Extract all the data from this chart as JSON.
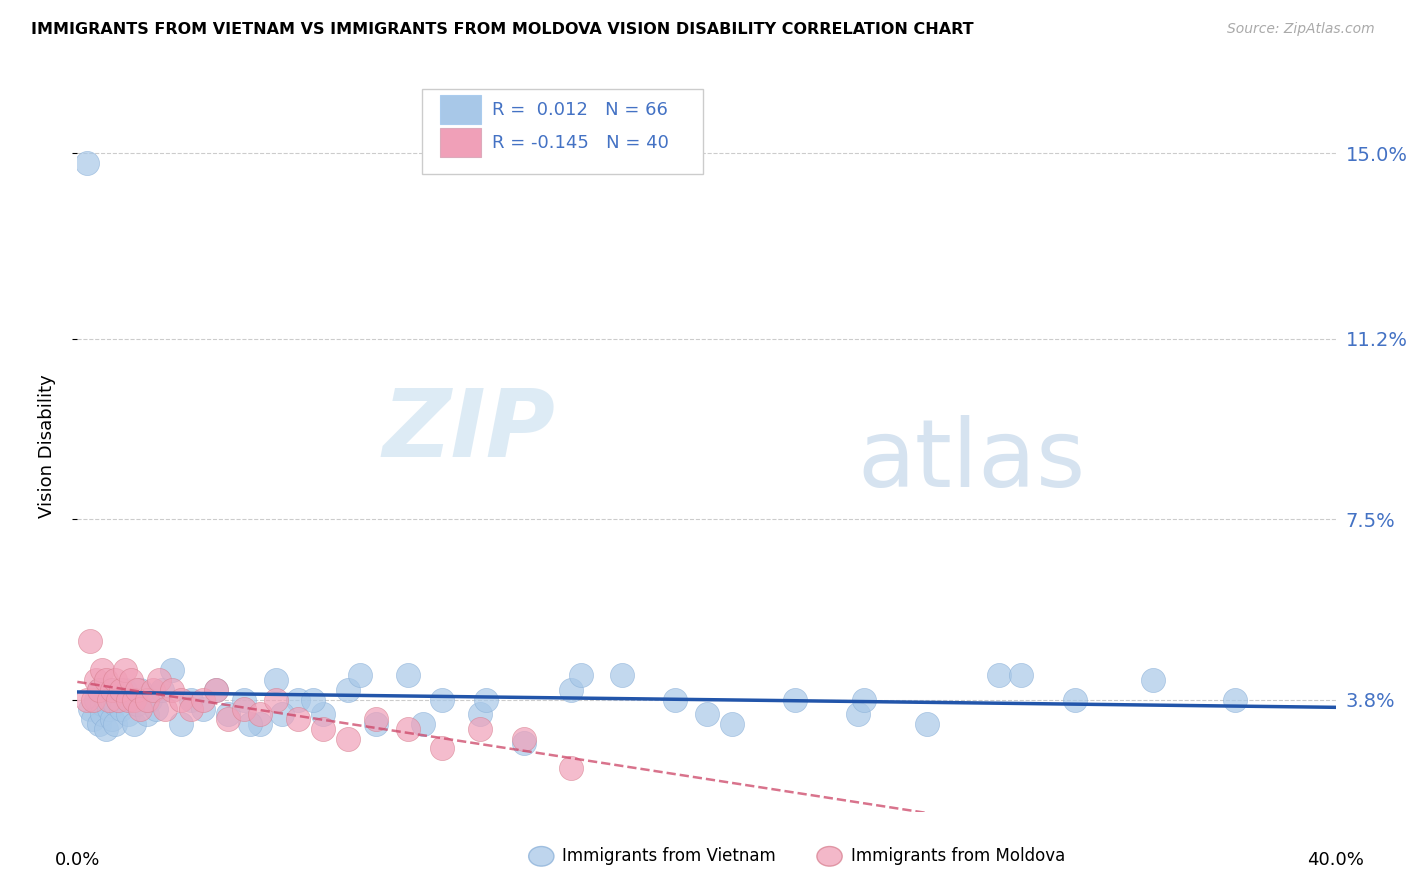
{
  "title": "IMMIGRANTS FROM VIETNAM VS IMMIGRANTS FROM MOLDOVA VISION DISABILITY CORRELATION CHART",
  "source": "Source: ZipAtlas.com",
  "ylabel": "Vision Disability",
  "yticks": [
    0.038,
    0.075,
    0.112,
    0.15
  ],
  "ytick_labels": [
    "3.8%",
    "7.5%",
    "11.2%",
    "15.0%"
  ],
  "xlim": [
    0.0,
    0.4
  ],
  "ylim": [
    0.015,
    0.165
  ],
  "vietnam_color": "#A8C8E8",
  "moldova_color": "#F0A0B8",
  "vietnam_R": "0.012",
  "vietnam_N": "66",
  "moldova_R": "-0.145",
  "moldova_N": "40",
  "trend_vietnam_color": "#2255AA",
  "trend_moldova_color": "#CC4466",
  "watermark_zip": "ZIP",
  "watermark_atlas": "atlas",
  "vietnam_x": [
    0.003,
    0.004,
    0.005,
    0.006,
    0.007,
    0.007,
    0.008,
    0.008,
    0.009,
    0.009,
    0.01,
    0.01,
    0.011,
    0.011,
    0.012,
    0.012,
    0.013,
    0.014,
    0.015,
    0.016,
    0.017,
    0.018,
    0.019,
    0.02,
    0.022,
    0.023,
    0.025,
    0.027,
    0.03,
    0.033,
    0.036,
    0.04,
    0.044,
    0.048,
    0.053,
    0.058,
    0.063,
    0.07,
    0.078,
    0.086,
    0.095,
    0.105,
    0.116,
    0.128,
    0.142,
    0.157,
    0.173,
    0.19,
    0.208,
    0.228,
    0.248,
    0.27,
    0.293,
    0.317,
    0.342,
    0.368,
    0.3,
    0.25,
    0.2,
    0.16,
    0.13,
    0.11,
    0.09,
    0.075,
    0.065,
    0.055
  ],
  "vietnam_y": [
    0.148,
    0.036,
    0.034,
    0.038,
    0.04,
    0.033,
    0.037,
    0.035,
    0.038,
    0.032,
    0.036,
    0.04,
    0.034,
    0.038,
    0.037,
    0.033,
    0.038,
    0.036,
    0.04,
    0.035,
    0.038,
    0.033,
    0.037,
    0.04,
    0.035,
    0.038,
    0.036,
    0.04,
    0.044,
    0.033,
    0.038,
    0.036,
    0.04,
    0.035,
    0.038,
    0.033,
    0.042,
    0.038,
    0.035,
    0.04,
    0.033,
    0.043,
    0.038,
    0.035,
    0.029,
    0.04,
    0.043,
    0.038,
    0.033,
    0.038,
    0.035,
    0.033,
    0.043,
    0.038,
    0.042,
    0.038,
    0.043,
    0.038,
    0.035,
    0.043,
    0.038,
    0.033,
    0.043,
    0.038,
    0.035,
    0.033
  ],
  "moldova_x": [
    0.003,
    0.004,
    0.005,
    0.006,
    0.007,
    0.008,
    0.009,
    0.01,
    0.011,
    0.012,
    0.013,
    0.014,
    0.015,
    0.016,
    0.017,
    0.018,
    0.019,
    0.02,
    0.022,
    0.024,
    0.026,
    0.028,
    0.03,
    0.033,
    0.036,
    0.04,
    0.044,
    0.048,
    0.053,
    0.058,
    0.063,
    0.07,
    0.078,
    0.086,
    0.095,
    0.105,
    0.116,
    0.128,
    0.142,
    0.157
  ],
  "moldova_y": [
    0.038,
    0.05,
    0.038,
    0.042,
    0.04,
    0.044,
    0.042,
    0.038,
    0.04,
    0.042,
    0.038,
    0.04,
    0.044,
    0.038,
    0.042,
    0.038,
    0.04,
    0.036,
    0.038,
    0.04,
    0.042,
    0.036,
    0.04,
    0.038,
    0.036,
    0.038,
    0.04,
    0.034,
    0.036,
    0.035,
    0.038,
    0.034,
    0.032,
    0.03,
    0.034,
    0.032,
    0.028,
    0.032,
    0.03,
    0.024
  ]
}
